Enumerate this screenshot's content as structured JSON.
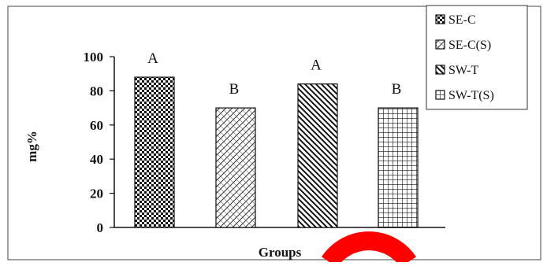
{
  "chart_data": {
    "type": "bar",
    "categories": [
      "",
      "",
      "",
      ""
    ],
    "series_names": [
      "SE-C",
      "SE-C(S)",
      "SW-T",
      "SW-T(S)"
    ],
    "patterns": [
      "checker",
      "diagonal-hatch",
      "diagonal-stripe",
      "grid"
    ],
    "values": [
      88,
      70,
      84,
      70
    ],
    "significance_letters": [
      "A",
      "B",
      "A",
      "B"
    ],
    "xlabel": "Groups",
    "ylabel": "mg%",
    "ylim": [
      0,
      100
    ],
    "yticks": [
      0,
      20,
      40,
      60,
      80,
      100
    ],
    "legend_position": "top-right",
    "grid": false
  },
  "colors": {
    "ink": "#111111",
    "background": "#ffffff",
    "overlay_mark": "#ff0000"
  }
}
